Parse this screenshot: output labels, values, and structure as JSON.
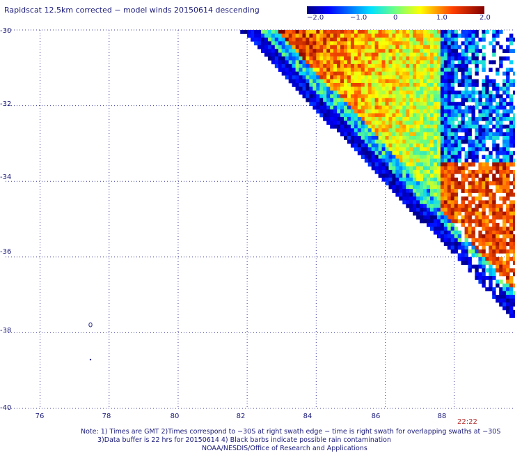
{
  "title": "Rapidscat 12.5km corrected − model winds 20150614 descending",
  "colorbar": {
    "ticks": [
      "−2.0",
      "−1.0",
      "0",
      "1.0",
      "2.0"
    ],
    "range": [
      -2.0,
      2.0
    ]
  },
  "lat_labels": [
    "-30",
    "-32",
    "-34",
    "-36",
    "-38",
    "-40"
  ],
  "lon_labels": [
    "76",
    "78",
    "80",
    "82",
    "84",
    "86",
    "88"
  ],
  "time_label": "22:22",
  "notes": {
    "line1": "Note: 1) Times are GMT 2)Times correspond to −30S at right swath edge − time is right swath for overlapping swaths at −30S",
    "line2": "3)Data buffer is 22 hrs for 20150614 4) Black barbs indicate possible rain contamination",
    "line3": "NOAA/NESDIS/Office of Research and Applications"
  },
  "chart_data": {
    "type": "heatmap",
    "title": "Rapidscat 12.5km corrected − model winds 20150614 descending",
    "xlim": [
      75,
      89.7
    ],
    "ylim": [
      -40,
      -30
    ],
    "x_ticks": [
      76,
      78,
      80,
      82,
      84,
      86,
      88
    ],
    "y_ticks": [
      -30,
      -32,
      -34,
      -36,
      -38,
      -40
    ],
    "color_range": [
      -2.0,
      2.0
    ],
    "grid": true,
    "swath": {
      "description_units": "degrees lon/lat",
      "start_lon_at_-30": 81.8,
      "east_edge_lon": 89.7,
      "south_tip_lat": -37.6
    }
  }
}
